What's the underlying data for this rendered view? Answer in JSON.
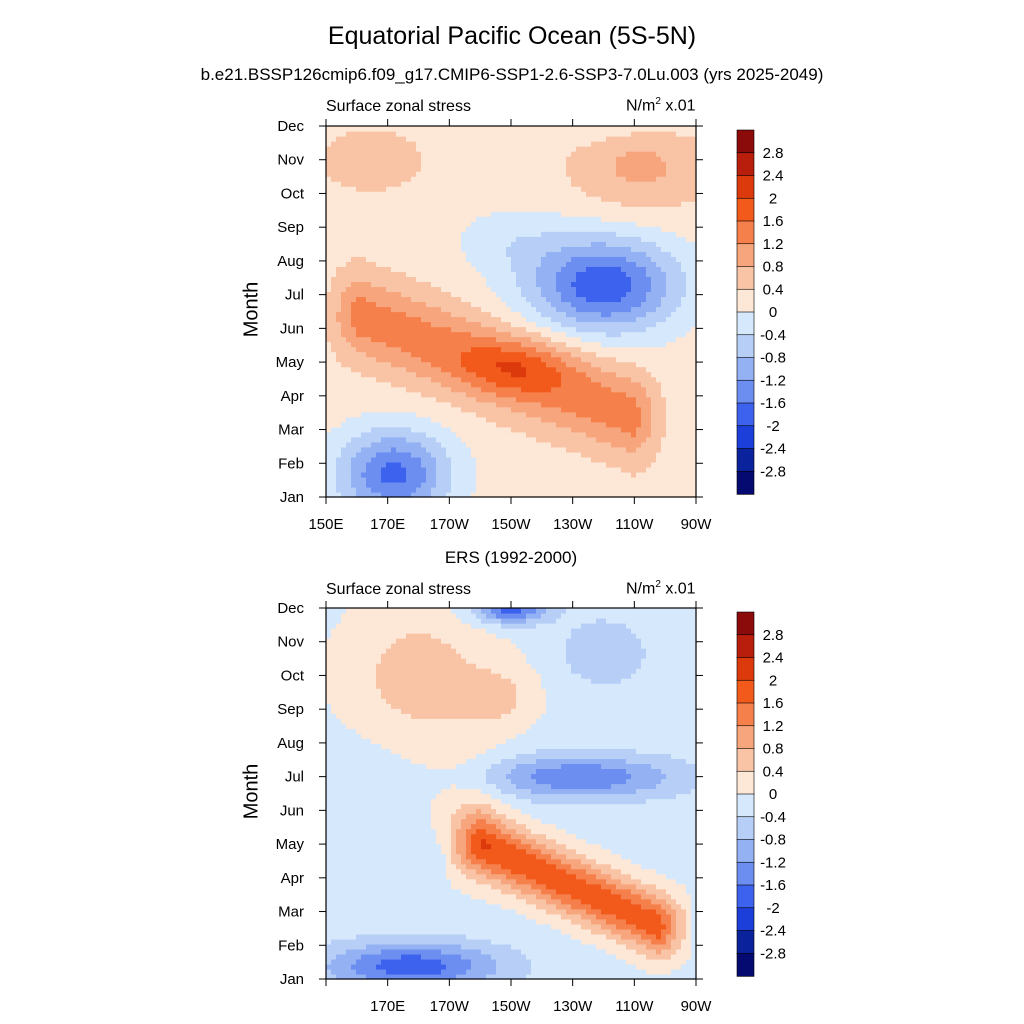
{
  "title": "Equatorial Pacific Ocean (5S-5N)",
  "subtitle": "b.e21.BSSP126cmip6.f09_g17.CMIP6-SSP1-2.6-SSP3-7.0Lu.003 (yrs 2025-2049)",
  "colorbar": {
    "levels": [
      "2.8",
      "2.4",
      "2",
      "1.6",
      "1.2",
      "0.8",
      "0.4",
      "0",
      "-0.4",
      "-0.8",
      "-1.2",
      "-1.6",
      "-2",
      "-2.4",
      "-2.8"
    ],
    "colors": [
      "#8b0a0a",
      "#b81e0b",
      "#dc3a0c",
      "#f25a1c",
      "#f5804c",
      "#f7a57c",
      "#f9c4a6",
      "#fde7d6",
      "#d6e8fb",
      "#b7cff7",
      "#93b1f3",
      "#6c8ef0",
      "#3d63ee",
      "#1b3fd8",
      "#0a239c",
      "#050a70"
    ]
  },
  "chart_data": [
    {
      "type": "heatmap",
      "panel_title": "",
      "left_label": "Surface zonal stress",
      "right_label": "N/m",
      "right_label_sup": "2",
      "right_label_suffix": " x.01",
      "ylabel": "Month",
      "x_ticks": [
        "150E",
        "170E",
        "170W",
        "150W",
        "130W",
        "110W",
        "90W"
      ],
      "y_ticks": [
        "Jan",
        "Feb",
        "Mar",
        "Apr",
        "May",
        "Jun",
        "Jul",
        "Aug",
        "Sep",
        "Oct",
        "Nov",
        "Dec"
      ],
      "x_range": [
        150,
        270
      ],
      "y_range": [
        1,
        12
      ],
      "features": [
        {
          "kind": "base",
          "value": 0.2
        },
        {
          "kind": "blob",
          "cx": 252,
          "cy": 10.8,
          "sx": 22,
          "sy": 1.3,
          "v": 0.7
        },
        {
          "kind": "blob",
          "cx": 165,
          "cy": 11.0,
          "sx": 16,
          "sy": 0.9,
          "v": 0.55
        },
        {
          "kind": "blob",
          "cx": 240,
          "cy": 7.3,
          "sx": 24,
          "sy": 1.4,
          "v": -2.1
        },
        {
          "kind": "blob",
          "cx": 210,
          "cy": 8.6,
          "sx": 18,
          "sy": 1.0,
          "v": -0.4
        },
        {
          "kind": "blob",
          "cx": 172,
          "cy": 1.7,
          "sx": 18,
          "sy": 1.3,
          "v": -1.9
        },
        {
          "kind": "blob",
          "cx": 235,
          "cy": 12.0,
          "sx": 30,
          "sy": 0.5,
          "v": -0.3
        },
        {
          "kind": "band",
          "x0": 160,
          "y0": 6.4,
          "x1": 250,
          "y1": 3.4,
          "w": 1.3,
          "v": 1.2
        },
        {
          "kind": "blob",
          "cx": 212,
          "cy": 4.9,
          "sx": 18,
          "sy": 0.8,
          "v": 0.7
        }
      ]
    },
    {
      "type": "heatmap",
      "panel_title": "ERS (1992-2000)",
      "left_label": "Surface zonal stress",
      "right_label": "N/m",
      "right_label_sup": "2",
      "right_label_suffix": " x.01",
      "ylabel": "Month",
      "x_ticks": [
        "",
        "170E",
        "170W",
        "150W",
        "130W",
        "110W",
        "90W"
      ],
      "y_ticks": [
        "Jan",
        "Feb",
        "Mar",
        "Apr",
        "May",
        "Jun",
        "Jul",
        "Aug",
        "Sep",
        "Oct",
        "Nov",
        "Dec"
      ],
      "x_range": [
        150,
        270
      ],
      "y_range": [
        1,
        12
      ],
      "features": [
        {
          "kind": "base",
          "value": -0.15
        },
        {
          "kind": "blob",
          "cx": 180,
          "cy": 10.0,
          "sx": 25,
          "sy": 2.2,
          "v": 0.75
        },
        {
          "kind": "blob",
          "cx": 207,
          "cy": 9.4,
          "sx": 12,
          "sy": 0.9,
          "v": 0.5
        },
        {
          "kind": "blob",
          "cx": 210,
          "cy": 12.0,
          "sx": 12,
          "sy": 0.45,
          "v": -1.7
        },
        {
          "kind": "blob",
          "cx": 240,
          "cy": 10.7,
          "sx": 14,
          "sy": 1.0,
          "v": -0.6
        },
        {
          "kind": "blob",
          "cx": 232,
          "cy": 7.0,
          "sx": 32,
          "sy": 0.65,
          "v": -1.4
        },
        {
          "kind": "blob",
          "cx": 178,
          "cy": 1.4,
          "sx": 28,
          "sy": 0.7,
          "v": -1.7
        },
        {
          "kind": "band",
          "x0": 200,
          "y0": 5.0,
          "x1": 258,
          "y1": 2.6,
          "w": 0.95,
          "v": 2.0
        },
        {
          "kind": "blob",
          "cx": 160,
          "cy": 6.5,
          "sx": 16,
          "sy": 1.8,
          "v": -0.2
        },
        {
          "kind": "blob",
          "cx": 196,
          "cy": 6.3,
          "sx": 14,
          "sy": 2.0,
          "v": 0.35
        }
      ]
    }
  ]
}
